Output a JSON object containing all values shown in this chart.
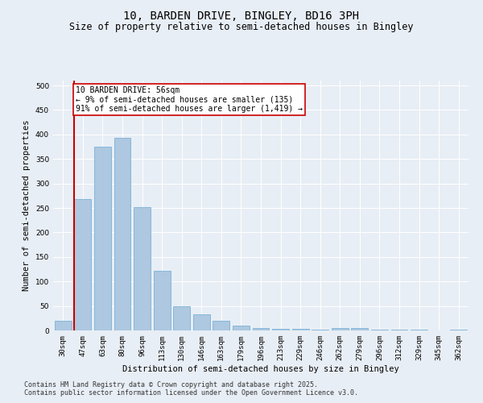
{
  "title": "10, BARDEN DRIVE, BINGLEY, BD16 3PH",
  "subtitle": "Size of property relative to semi-detached houses in Bingley",
  "xlabel": "Distribution of semi-detached houses by size in Bingley",
  "ylabel": "Number of semi-detached properties",
  "categories": [
    "30sqm",
    "47sqm",
    "63sqm",
    "80sqm",
    "96sqm",
    "113sqm",
    "130sqm",
    "146sqm",
    "163sqm",
    "179sqm",
    "196sqm",
    "213sqm",
    "229sqm",
    "246sqm",
    "262sqm",
    "279sqm",
    "296sqm",
    "312sqm",
    "329sqm",
    "345sqm",
    "362sqm"
  ],
  "values": [
    20,
    268,
    375,
    393,
    252,
    122,
    50,
    33,
    20,
    10,
    5,
    4,
    3,
    2,
    5,
    5,
    1,
    2,
    1,
    0,
    2
  ],
  "bar_color": "#adc8e0",
  "bar_edge_color": "#6aaad4",
  "vline_color": "#cc0000",
  "annotation_title": "10 BARDEN DRIVE: 56sqm",
  "annotation_line2": "← 9% of semi-detached houses are smaller (135)",
  "annotation_line3": "91% of semi-detached houses are larger (1,419) →",
  "annotation_box_color": "#cc0000",
  "ylim": [
    0,
    510
  ],
  "yticks": [
    0,
    50,
    100,
    150,
    200,
    250,
    300,
    350,
    400,
    450,
    500
  ],
  "footnote1": "Contains HM Land Registry data © Crown copyright and database right 2025.",
  "footnote2": "Contains public sector information licensed under the Open Government Licence v3.0.",
  "bg_color": "#e8eef5",
  "title_fontsize": 10,
  "subtitle_fontsize": 8.5,
  "axis_label_fontsize": 7.5,
  "tick_fontsize": 6.5,
  "annotation_fontsize": 7,
  "footnote_fontsize": 6
}
